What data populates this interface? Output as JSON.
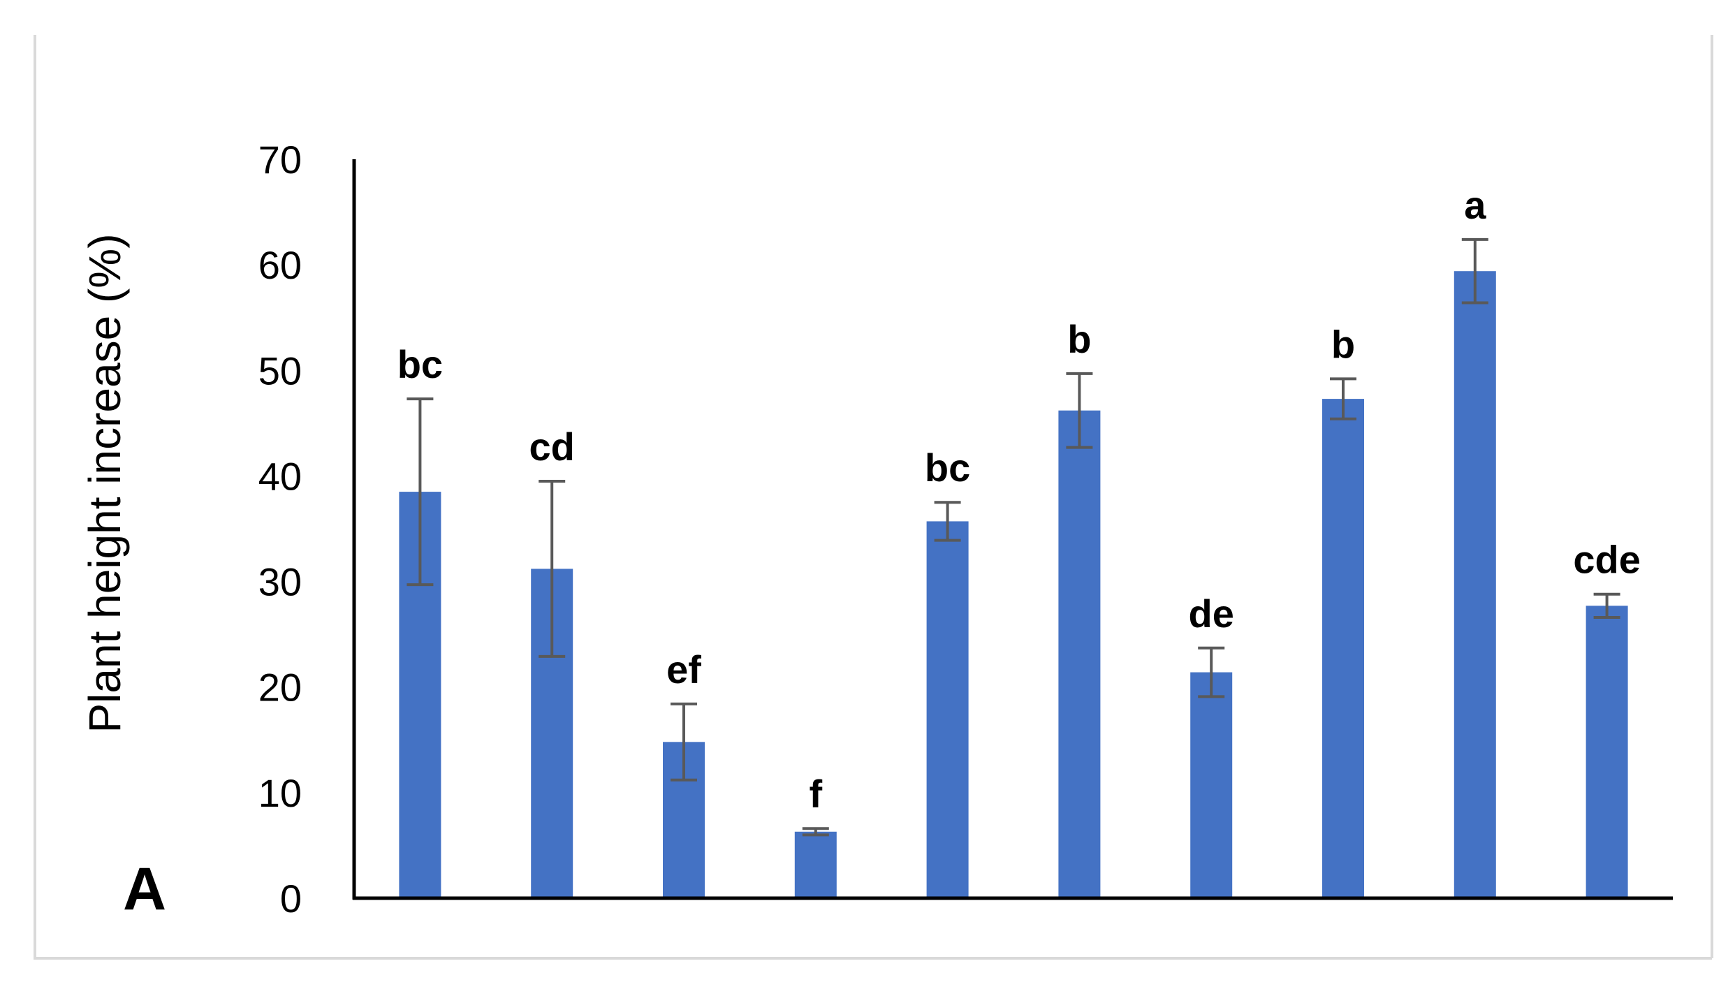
{
  "chart_data": {
    "type": "bar",
    "panel_label": "A",
    "title": "",
    "xlabel": "",
    "ylabel": "Plant height  increase (%)",
    "ylim": [
      0,
      70
    ],
    "yticks": [
      0,
      10,
      20,
      30,
      40,
      50,
      60,
      70
    ],
    "grid": false,
    "legend": "none",
    "bar_color": "#4472c4",
    "error_color": "#595959",
    "frame_color": "#d9d9d9",
    "categories": [
      "",
      "",
      "",
      "",
      "",
      "",
      "",
      "",
      "",
      ""
    ],
    "series": [
      {
        "values": [
          38.5,
          31.2,
          14.8,
          6.3,
          35.7,
          46.2,
          21.4,
          47.3,
          59.4,
          27.7
        ],
        "errors": [
          8.8,
          8.3,
          3.6,
          0.3,
          1.8,
          3.5,
          2.3,
          1.9,
          3.0,
          1.1
        ],
        "labels": [
          "bc",
          "cd",
          "ef",
          "f",
          "bc",
          "b",
          "de",
          "b",
          "a",
          "cde"
        ]
      }
    ]
  }
}
